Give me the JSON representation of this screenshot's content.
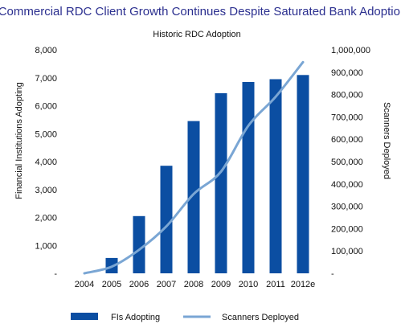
{
  "chart_data": {
    "type": "bar",
    "title": "Commercial RDC Client Growth Continues Despite Saturated Bank Adoption",
    "subtitle": "Historic RDC Adoption",
    "categories": [
      "2004",
      "2005",
      "2006",
      "2007",
      "2008",
      "2009",
      "2010",
      "2011",
      "2012e"
    ],
    "ylabel_left": "Financial Institutions Adopting",
    "ylabel_right": "Scanners Deployed",
    "y_left_ticks": [
      "-",
      "1,000",
      "2,000",
      "3,000",
      "4,000",
      "5,000",
      "6,000",
      "7,000",
      "8,000"
    ],
    "y_right_ticks": [
      "-",
      "100,000",
      "200,000",
      "300,000",
      "400,000",
      "500,000",
      "600,000",
      "700,000",
      "800,000",
      "900,000",
      "1,000,000"
    ],
    "ylim_left": [
      0,
      8000
    ],
    "ylim_right": [
      0,
      1000000
    ],
    "grid": false,
    "legend_position": "bottom",
    "series": [
      {
        "name": "FIs Adopting",
        "type": "bar",
        "axis": "left",
        "color": "#0b4ea2",
        "values": [
          0,
          550,
          2050,
          3850,
          5450,
          6450,
          6850,
          6950,
          7100
        ]
      },
      {
        "name": "Scanners Deployed",
        "type": "line",
        "axis": "right",
        "color": "#7aa6d4",
        "values": [
          0,
          30000,
          105000,
          210000,
          355000,
          455000,
          660000,
          790000,
          945000
        ]
      }
    ]
  }
}
